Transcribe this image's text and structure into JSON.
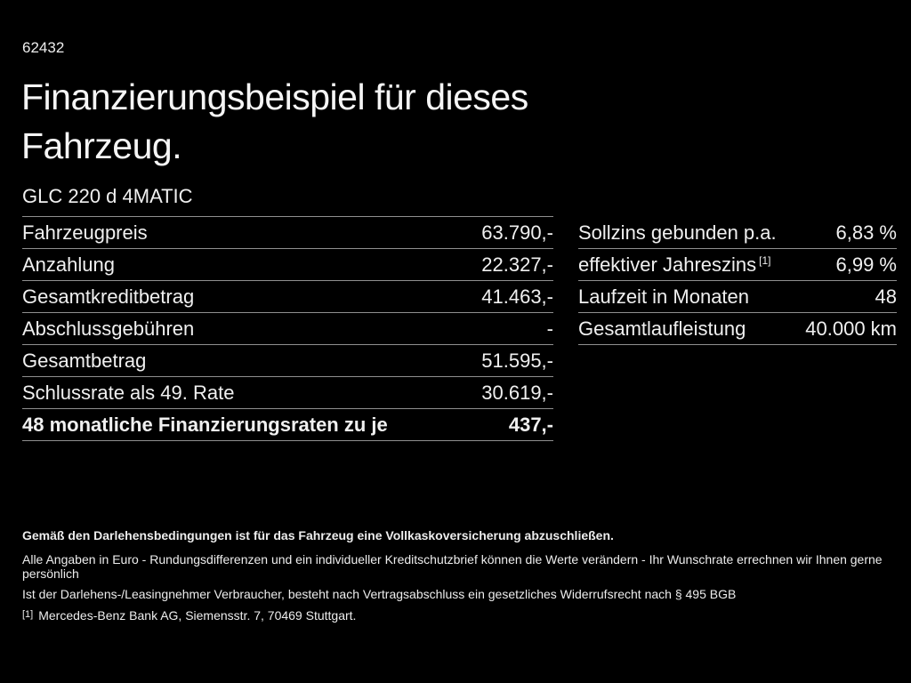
{
  "page": {
    "id_number": "62432",
    "title": "Finanzierungsbeispiel für dieses\nFahrzeug.",
    "vehicle_model": "GLC 220 d 4MATIC"
  },
  "finance_table": {
    "rows": [
      {
        "label": "Fahrzeugpreis",
        "value": "63.790,-"
      },
      {
        "label": "Anzahlung",
        "value": "22.327,-"
      },
      {
        "label": "Gesamtkreditbetrag",
        "value": "41.463,-"
      },
      {
        "label": "Abschlussgebühren",
        "value": "-"
      },
      {
        "label": "Gesamtbetrag",
        "value": "51.595,-"
      },
      {
        "label": "Schlussrate als 49. Rate",
        "value": "30.619,-"
      },
      {
        "label": "48 monatliche Finanzierungsraten zu je",
        "value": "437,-"
      }
    ]
  },
  "conditions_table": {
    "rows": [
      {
        "label": "Sollzins gebunden p.a.",
        "value": "6,83 %"
      },
      {
        "label": "effektiver Jahreszins",
        "footnote_marker": "[1]",
        "value": "6,99 %"
      },
      {
        "label": "Laufzeit in Monaten",
        "value": "48"
      },
      {
        "label": "Gesamtlaufleistung",
        "value": "40.000 km"
      }
    ]
  },
  "footer": {
    "line1": "Gemäß den Darlehensbedingungen ist für das Fahrzeug eine Vollkaskoversicherung abzuschließen.",
    "line2": "Alle Angaben in Euro - Rundungsdifferenzen und ein individueller Kreditschutzbrief können die Werte verändern - Ihr Wunschrate errechnen wir Ihnen gerne persönlich",
    "line3": "Ist der Darlehens-/Leasingnehmer Verbraucher, besteht nach Vertragsabschluss ein gesetzliches Widerrufsrecht nach § 495 BGB",
    "footnote_marker": "[1]",
    "footnote_text": "Mercedes-Benz Bank AG, Siemensstr. 7, 70469 Stuttgart."
  },
  "colors": {
    "background": "#000000",
    "text": "#f0f0f0",
    "divider": "#8f8f8f"
  }
}
